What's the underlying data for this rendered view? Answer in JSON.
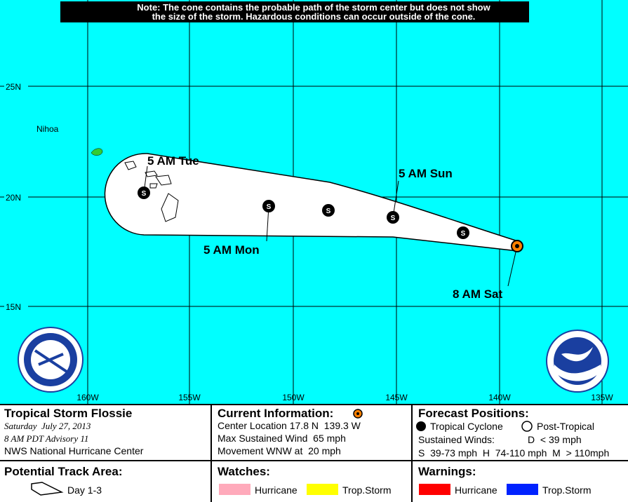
{
  "note": [
    "Note: The cone contains the probable path of the storm center but does not show",
    "the size of the storm. Hazardous conditions can occur outside of the cone."
  ],
  "map": {
    "latitude_labels": [
      "25N",
      "20N",
      "15N"
    ],
    "longitude_labels": [
      "160W",
      "155W",
      "150W",
      "145W",
      "140W",
      "135W"
    ],
    "places": [
      "Nihoa"
    ],
    "forecast_labels": [
      "5 AM Tue",
      "5 AM Sun",
      "5 AM Mon",
      "8 AM Sat"
    ],
    "marker_letter": "S"
  },
  "legend": {
    "storm": {
      "title": "Tropical Storm Flossie",
      "date": "Saturday  July 27, 2013",
      "advisory": "8 AM PDT Advisory 11",
      "center": "NWS National Hurricane Center"
    },
    "current": {
      "title": "Current Information:",
      "lines": [
        "Center Location 17.8 N  139.3 W",
        "Max Sustained Wind  65 mph",
        "Movement WNW at  20 mph"
      ]
    },
    "forecast": {
      "title": "Forecast Positions:",
      "tropical": "Tropical Cyclone",
      "post_tropical": "Post-Tropical",
      "winds_title": "Sustained Winds:",
      "winds_d": "D  < 39 mph",
      "winds_scale": "S  39-73 mph  H  74-110 mph  M  > 110mph"
    },
    "track": {
      "title": "Potential Track Area:",
      "day": "Day 1-3"
    },
    "watches": {
      "title": "Watches:",
      "hurricane": "Hurricane",
      "storm": "Trop.Storm"
    },
    "warnings": {
      "title": "Warnings:",
      "hurricane": "Hurricane",
      "storm": "Trop.Storm"
    }
  }
}
